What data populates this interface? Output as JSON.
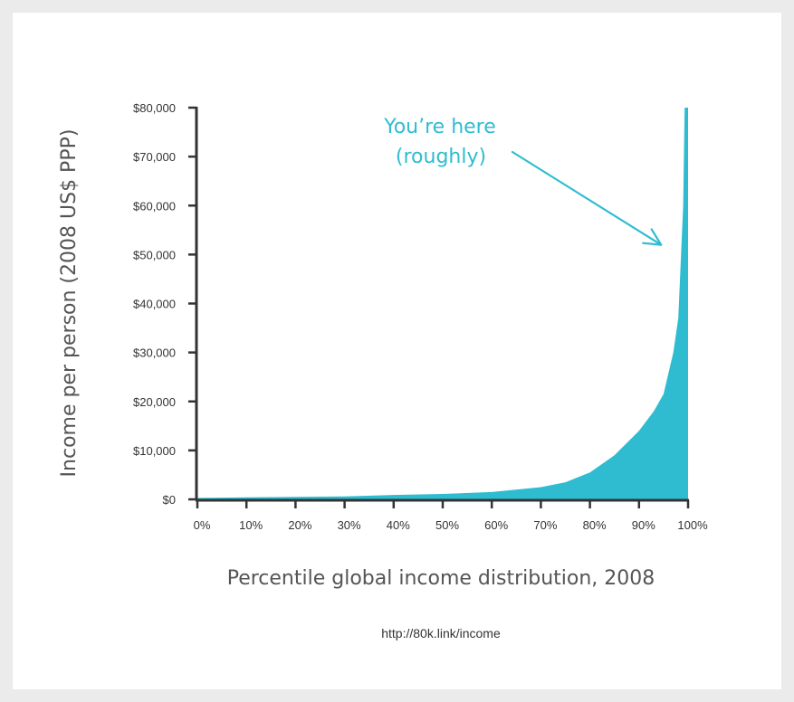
{
  "colors": {
    "fill": "#2fbcd1",
    "axis": "#333333",
    "annotation": "#2fbcd1",
    "text": "#333333"
  },
  "chart_data": {
    "type": "area",
    "title": "",
    "xlabel": "Percentile global income distribution, 2008",
    "ylabel": "Income per person (2008 US$ PPP)",
    "xlim": [
      0,
      100
    ],
    "ylim": [
      0,
      80000
    ],
    "x_ticks": [
      "0%",
      "10%",
      "20%",
      "30%",
      "40%",
      "50%",
      "60%",
      "70%",
      "80%",
      "90%",
      "100%"
    ],
    "y_ticks": [
      "$0",
      "$10,000",
      "$20,000",
      "$30,000",
      "$40,000",
      "$50,000",
      "$60,000",
      "$70,000",
      "$80,000"
    ],
    "x_tick_values": [
      0,
      10,
      20,
      30,
      40,
      50,
      60,
      70,
      80,
      90,
      100
    ],
    "y_tick_values": [
      0,
      10000,
      20000,
      30000,
      40000,
      50000,
      60000,
      70000,
      80000
    ],
    "grid": false,
    "series": [
      {
        "x": [
          0,
          10,
          20,
          30,
          40,
          50,
          60,
          70,
          75,
          80,
          85,
          90,
          93,
          95,
          97,
          98,
          99,
          99.3,
          99.6,
          100
        ],
        "y": [
          300,
          400,
          500,
          600,
          900,
          1100,
          1500,
          2500,
          3500,
          5500,
          9000,
          14000,
          18000,
          21500,
          30000,
          37000,
          60000,
          80000,
          80000,
          80000
        ]
      }
    ],
    "annotation": {
      "text_line1": "You’re here",
      "text_line2": "(roughly)",
      "arrow_to": [
        94.5,
        52000
      ]
    },
    "source": "http://80k.link/income"
  }
}
